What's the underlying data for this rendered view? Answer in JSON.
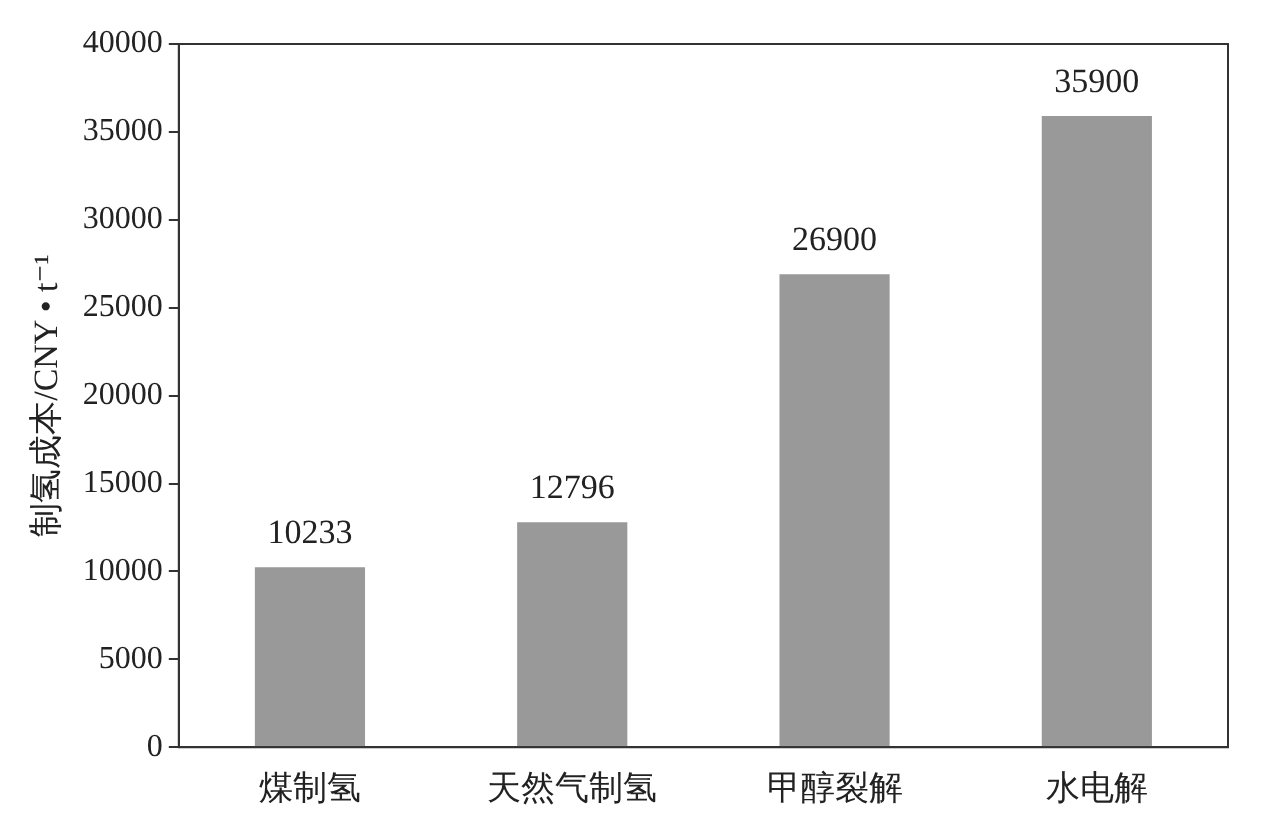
{
  "chart_data": {
    "type": "bar",
    "ylabel": "制氢成本/CNY • t⁻¹",
    "categories": [
      "煤制氢",
      "天然气制氢",
      "甲醇裂解",
      "水电解"
    ],
    "values": [
      10233,
      12796,
      26900,
      35900
    ],
    "color": "#999999",
    "ylim": [
      0,
      40000
    ],
    "yticks": [
      0,
      5000,
      10000,
      15000,
      20000,
      25000,
      30000,
      35000,
      40000
    ],
    "data_labels": true,
    "legend": false
  }
}
